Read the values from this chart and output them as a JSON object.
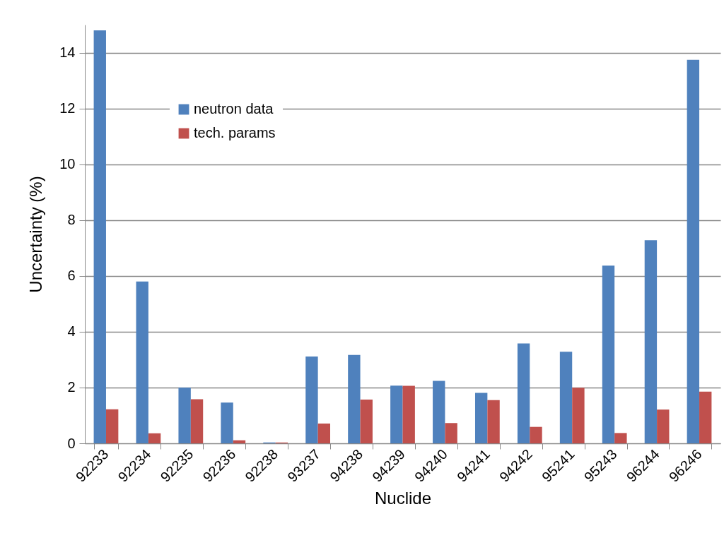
{
  "chart_data": {
    "type": "bar",
    "xlabel": "Nuclide",
    "ylabel": "Uncertainty (%)",
    "categories": [
      "92233",
      "92234",
      "92235",
      "92236",
      "92238",
      "93237",
      "94238",
      "94239",
      "94240",
      "94241",
      "94242",
      "95241",
      "95243",
      "96244",
      "96246"
    ],
    "series": [
      {
        "name": "neutron data",
        "color": "#4f81bd",
        "values": [
          14.8,
          5.8,
          2.0,
          1.46,
          0.03,
          3.11,
          3.17,
          2.07,
          2.24,
          1.81,
          3.58,
          3.28,
          6.37,
          7.28,
          13.74
        ]
      },
      {
        "name": "tech. params",
        "color": "#c0504d",
        "values": [
          1.22,
          0.36,
          1.58,
          0.11,
          0.03,
          0.71,
          1.57,
          2.06,
          0.73,
          1.55,
          0.59,
          1.99,
          0.37,
          1.21,
          1.85
        ]
      }
    ],
    "ylim": [
      0,
      15
    ],
    "yticks": [
      0,
      2,
      4,
      6,
      8,
      10,
      12,
      14
    ],
    "grid": "y",
    "legend": "top left"
  }
}
